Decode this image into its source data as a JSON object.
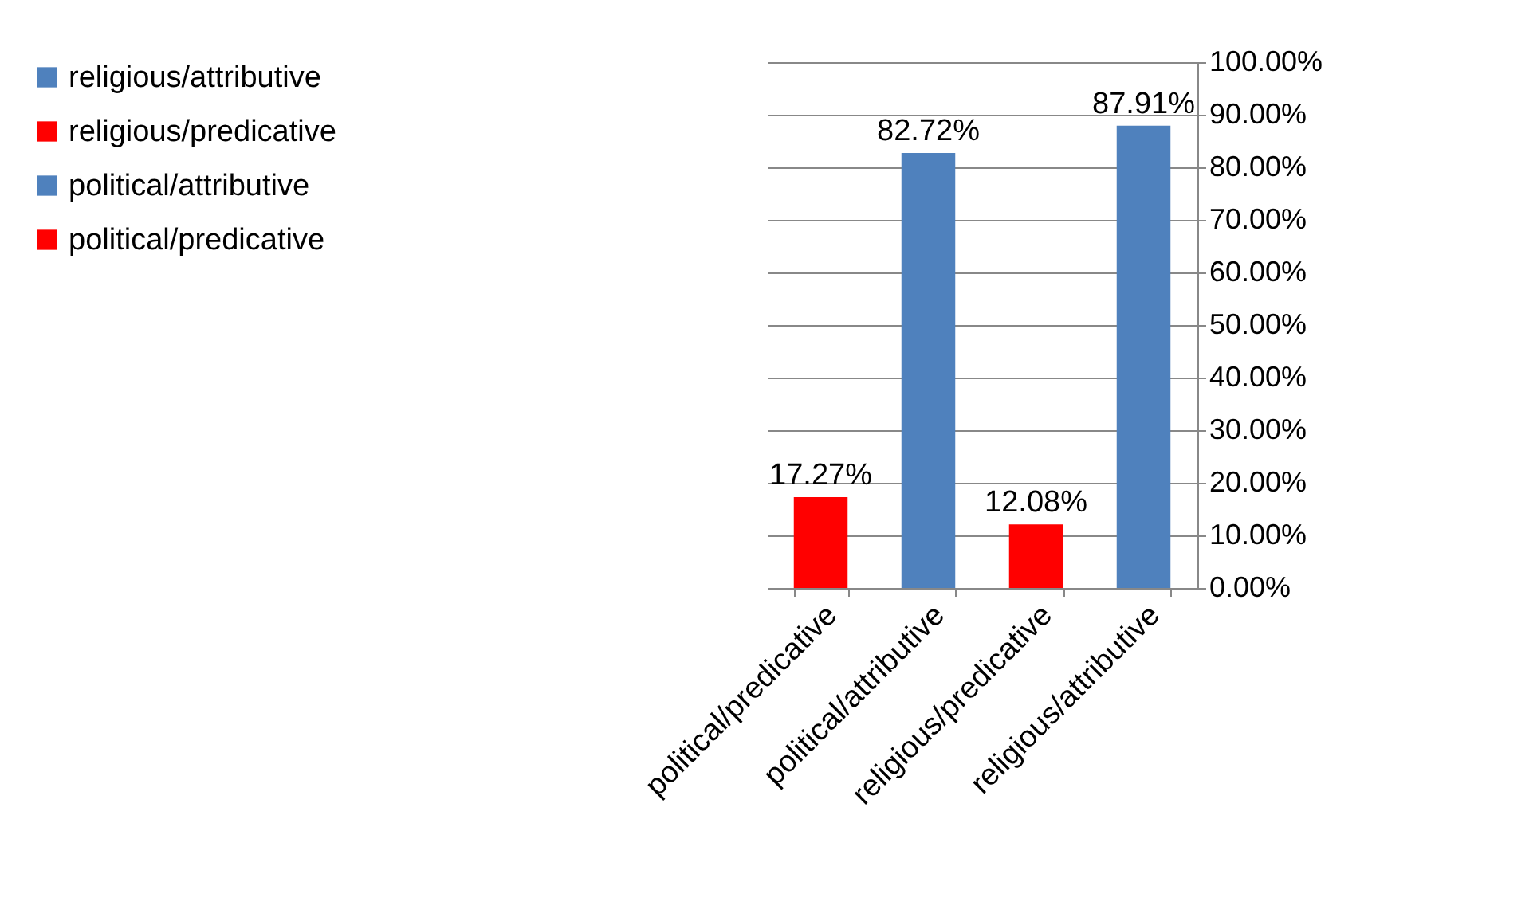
{
  "chart_data": {
    "type": "bar",
    "categories": [
      "political/predicative",
      "political/attributive",
      "religious/predicative",
      "religious/attributive"
    ],
    "series": [
      {
        "name": "political/predicative",
        "color": "#ff0000",
        "values": [
          17.27,
          null,
          null,
          null
        ],
        "value_labels": [
          "17.27%",
          null,
          null,
          null
        ]
      },
      {
        "name": "political/attributive",
        "color": "#4f81bd",
        "values": [
          null,
          82.72,
          null,
          null
        ],
        "value_labels": [
          null,
          "82.72%",
          null,
          null
        ]
      },
      {
        "name": "religious/predicative",
        "color": "#ff0000",
        "values": [
          null,
          null,
          12.08,
          null
        ],
        "value_labels": [
          null,
          null,
          "12.08%",
          null
        ]
      },
      {
        "name": "religious/attributive",
        "color": "#4f81bd",
        "values": [
          null,
          null,
          null,
          87.91
        ],
        "value_labels": [
          null,
          null,
          null,
          "87.91%"
        ]
      }
    ],
    "ylim": [
      0,
      100
    ],
    "yticks": [
      {
        "value": 0,
        "label": "0.00%"
      },
      {
        "value": 10,
        "label": "10.00%"
      },
      {
        "value": 20,
        "label": "20.00%"
      },
      {
        "value": 30,
        "label": "30.00%"
      },
      {
        "value": 40,
        "label": "40.00%"
      },
      {
        "value": 50,
        "label": "50.00%"
      },
      {
        "value": 60,
        "label": "60.00%"
      },
      {
        "value": 70,
        "label": "70.00%"
      },
      {
        "value": 80,
        "label": "80.00%"
      },
      {
        "value": 90,
        "label": "90.00%"
      },
      {
        "value": 100,
        "label": "100.00%"
      }
    ],
    "grid": "y",
    "legend": "left"
  }
}
